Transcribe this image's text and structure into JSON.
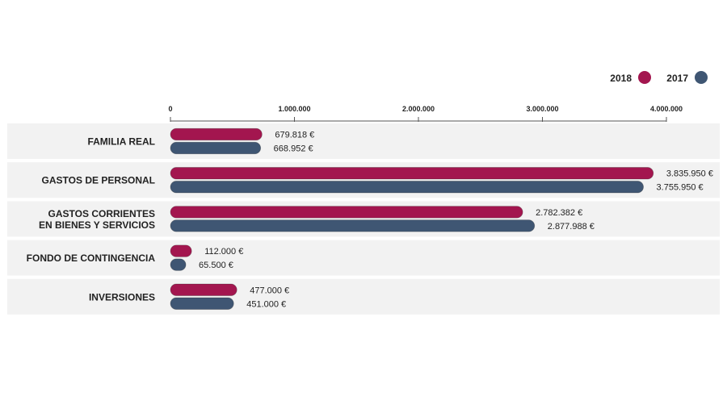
{
  "chart_data": {
    "type": "bar",
    "orientation": "horizontal",
    "categories": [
      [
        "FAMILIA REAL"
      ],
      [
        "GASTOS DE PERSONAL"
      ],
      [
        "GASTOS CORRIENTES",
        "EN BIENES Y SERVICIOS"
      ],
      [
        "FONDO DE CONTINGENCIA"
      ],
      [
        "INVERSIONES"
      ]
    ],
    "series": [
      {
        "name": "2018",
        "color": "#a3164f",
        "values": [
          679818,
          3835950,
          2782382,
          112000,
          477000
        ],
        "labels": [
          "679.818 €",
          "3.835.950 €",
          "2.782.382 €",
          "112.000 €",
          "477.000 €"
        ]
      },
      {
        "name": "2017",
        "color": "#3f5673",
        "values": [
          668952,
          3755950,
          2877988,
          65500,
          451000
        ],
        "labels": [
          "668.952 €",
          "3.755.950 €",
          "2.877.988 €",
          "65.500 €",
          "451.000 €"
        ]
      }
    ],
    "xlim": [
      0,
      4000000
    ],
    "ticks": [
      {
        "value": 0,
        "label": "0"
      },
      {
        "value": 1000000,
        "label": "1.000.000"
      },
      {
        "value": 2000000,
        "label": "2.000.000"
      },
      {
        "value": 3000000,
        "label": "3.000.000"
      },
      {
        "value": 4000000,
        "label": "4.000.000"
      }
    ],
    "legend_position": "top-right",
    "row_background": "#f2f2f2",
    "axis_color": "#555555"
  }
}
